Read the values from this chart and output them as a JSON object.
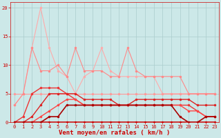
{
  "bg_color": "#cce8e8",
  "grid_color": "#aacccc",
  "xlabel": "Vent moyen/en rafales ( km/h )",
  "xlim": [
    -0.5,
    23.5
  ],
  "ylim": [
    0,
    21
  ],
  "yticks": [
    0,
    5,
    10,
    15,
    20
  ],
  "xticks": [
    0,
    1,
    2,
    3,
    4,
    5,
    6,
    7,
    8,
    9,
    10,
    11,
    12,
    13,
    14,
    15,
    16,
    17,
    18,
    19,
    20,
    21,
    22,
    23
  ],
  "lines": [
    {
      "x": [
        0,
        1,
        2,
        3,
        4,
        5,
        6,
        7,
        8,
        9,
        10,
        11,
        12,
        13,
        14,
        15,
        16,
        17,
        18,
        19,
        20,
        21,
        22,
        23
      ],
      "y": [
        3,
        5,
        13,
        20,
        13,
        9,
        8,
        5,
        8,
        9,
        13,
        9,
        8,
        8,
        8,
        8,
        8,
        5,
        5,
        5,
        5,
        5,
        5,
        5
      ],
      "color": "#ffaaaa",
      "lw": 0.8,
      "ms": 2.5
    },
    {
      "x": [
        0,
        1,
        2,
        3,
        4,
        5,
        6,
        7,
        8,
        9,
        10,
        11,
        12,
        13,
        14,
        15,
        16,
        17,
        18,
        19,
        20,
        21,
        22,
        23
      ],
      "y": [
        5,
        5,
        5,
        5,
        5,
        5,
        5,
        5,
        5,
        5,
        5,
        5,
        5,
        5,
        5,
        5,
        5,
        5,
        5,
        5,
        5,
        5,
        5,
        5
      ],
      "color": "#ff9999",
      "lw": 0.8,
      "ms": 2.5
    },
    {
      "x": [
        0,
        1,
        2,
        3,
        4,
        5,
        6,
        7,
        8,
        9,
        10,
        11,
        12,
        13,
        14,
        15,
        16,
        17,
        18,
        19,
        20,
        21,
        22,
        23
      ],
      "y": [
        3,
        5,
        13,
        9,
        9,
        10,
        8,
        13,
        9,
        9,
        9,
        8,
        8,
        13,
        9,
        8,
        8,
        8,
        8,
        8,
        5,
        5,
        5,
        5
      ],
      "color": "#ff8888",
      "lw": 0.8,
      "ms": 2.5
    },
    {
      "x": [
        0,
        1,
        2,
        3,
        4,
        5,
        6,
        7,
        8,
        9,
        10,
        11,
        12,
        13,
        14,
        15,
        16,
        17,
        18,
        19,
        20,
        21,
        22,
        23
      ],
      "y": [
        0,
        1,
        5,
        6,
        6,
        6,
        5,
        4,
        3,
        3,
        3,
        3,
        3,
        3,
        3,
        3,
        3,
        3,
        3,
        3,
        3,
        2,
        1,
        1
      ],
      "color": "#ee3333",
      "lw": 1.0,
      "ms": 2.5
    },
    {
      "x": [
        0,
        1,
        2,
        3,
        4,
        5,
        6,
        7,
        8,
        9,
        10,
        11,
        12,
        13,
        14,
        15,
        16,
        17,
        18,
        19,
        20,
        21,
        22,
        23
      ],
      "y": [
        0,
        0,
        1,
        3,
        5,
        5,
        5,
        5,
        4,
        4,
        4,
        4,
        3,
        3,
        4,
        4,
        4,
        4,
        4,
        4,
        4,
        3,
        3,
        3
      ],
      "color": "#dd2222",
      "lw": 1.0,
      "ms": 2.5
    },
    {
      "x": [
        0,
        1,
        2,
        3,
        4,
        5,
        6,
        7,
        8,
        9,
        10,
        11,
        12,
        13,
        14,
        15,
        16,
        17,
        18,
        19,
        20,
        21,
        22,
        23
      ],
      "y": [
        0,
        0,
        0,
        0,
        0,
        0,
        0,
        0,
        0,
        0,
        0,
        0,
        0,
        0,
        0,
        0,
        0,
        0,
        0,
        0,
        0,
        0,
        0,
        0
      ],
      "color": "#cc0000",
      "lw": 1.2,
      "ms": 2.5
    },
    {
      "x": [
        0,
        1,
        2,
        3,
        4,
        5,
        6,
        7,
        8,
        9,
        10,
        11,
        12,
        13,
        14,
        15,
        16,
        17,
        18,
        19,
        20,
        21,
        22,
        23
      ],
      "y": [
        0,
        0,
        0,
        1,
        2,
        3,
        4,
        4,
        3,
        3,
        3,
        3,
        3,
        3,
        3,
        3,
        3,
        3,
        3,
        3,
        2,
        2,
        1,
        1
      ],
      "color": "#ff4444",
      "lw": 1.0,
      "ms": 2.5
    },
    {
      "x": [
        0,
        1,
        2,
        3,
        4,
        5,
        6,
        7,
        8,
        9,
        10,
        11,
        12,
        13,
        14,
        15,
        16,
        17,
        18,
        19,
        20,
        21,
        22,
        23
      ],
      "y": [
        0,
        0,
        0,
        0,
        1,
        1,
        3,
        3,
        3,
        3,
        3,
        3,
        3,
        3,
        3,
        3,
        3,
        3,
        3,
        1,
        0,
        0,
        1,
        1
      ],
      "color": "#aa0000",
      "lw": 1.2,
      "ms": 2.5
    }
  ],
  "tick_label_color": "#cc0000",
  "axis_label_color": "#cc0000",
  "tick_fontsize": 5,
  "xlabel_fontsize": 6.5
}
